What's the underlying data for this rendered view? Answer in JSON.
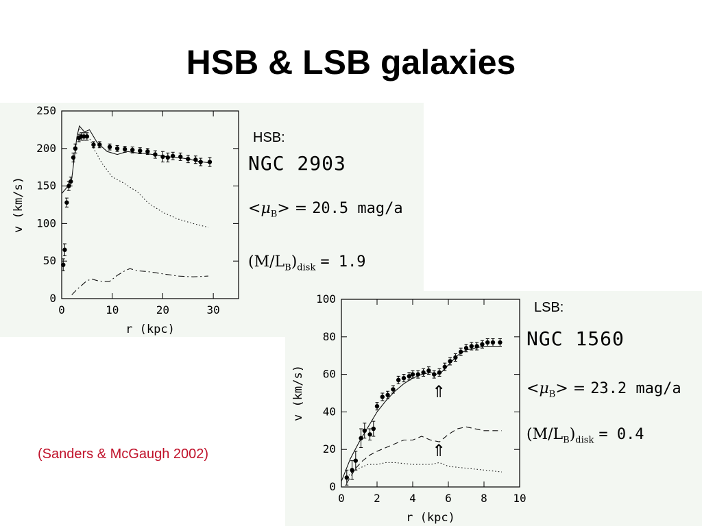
{
  "slide": {
    "title": "HSB & LSB galaxies",
    "citation": "(Sanders & McGaugh 2002)"
  },
  "panels": {
    "hsb": {
      "tag": "HSB:",
      "galaxy": "NGC 2903",
      "mu_lhs": "<μB> =",
      "mu_val": "20.5 mag/a",
      "ml_lhs": "(M/LB)disk",
      "ml_val": "= 1.9"
    },
    "lsb": {
      "tag": "LSB:",
      "galaxy": "NGC 1560",
      "mu_lhs": "<μB> =",
      "mu_val": "23.2 mag/a",
      "ml_lhs": "(M/LB)disk",
      "ml_val": "= 0.4",
      "arrow_glyph": "⇑"
    }
  },
  "chart_data": [
    {
      "type": "line",
      "xlabel": "r (kpc)",
      "ylabel": "v (km/s)",
      "xlim": [
        0,
        35
      ],
      "ylim": [
        0,
        250
      ],
      "xticks": [
        0,
        10,
        20,
        30
      ],
      "yticks": [
        0,
        50,
        100,
        150,
        200,
        250
      ],
      "observed": {
        "x": [
          0.3,
          0.6,
          1.0,
          1.4,
          1.8,
          2.3,
          2.7,
          3.4,
          3.9,
          4.4,
          5.0,
          6.3,
          7.5,
          9.5,
          11.0,
          12.5,
          14.0,
          15.5,
          17.0,
          18.5,
          20.0,
          21.0,
          22.0,
          23.5,
          25.0,
          26.5,
          27.5,
          29.3
        ],
        "v": [
          45,
          65,
          128,
          150,
          156,
          188,
          200,
          214,
          216,
          216,
          216,
          205,
          205,
          202,
          200,
          199,
          198,
          197,
          196,
          192,
          189,
          188,
          190,
          189,
          186,
          185,
          182,
          182
        ],
        "err": [
          8,
          8,
          6,
          6,
          6,
          6,
          6,
          5,
          5,
          5,
          5,
          4,
          4,
          4,
          4,
          4,
          4,
          4,
          4,
          5,
          7,
          6,
          5,
          5,
          5,
          5,
          5,
          6
        ]
      },
      "series": [
        {
          "style": "solid",
          "x": [
            0,
            1,
            2,
            3,
            3.5,
            4.5,
            5.5,
            7,
            9,
            11,
            13,
            15,
            17,
            19,
            21,
            23,
            25,
            27,
            29
          ],
          "y": [
            140,
            148,
            160,
            215,
            230,
            222,
            225,
            208,
            196,
            192,
            196,
            194,
            193,
            191,
            189,
            188,
            186,
            183,
            181
          ]
        },
        {
          "style": "dotted",
          "x": [
            3.5,
            4.5,
            5.5,
            6.5,
            8,
            10,
            12,
            15,
            17,
            20,
            23,
            26,
            29
          ],
          "y": [
            226,
            224,
            214,
            198,
            180,
            162,
            155,
            142,
            128,
            115,
            106,
            100,
            95
          ]
        },
        {
          "style": "dashdot",
          "x": [
            2,
            3,
            4,
            5,
            6,
            7,
            8,
            9.5,
            11,
            12.5,
            13.5,
            15,
            17,
            20,
            23,
            26,
            29
          ],
          "y": [
            5,
            12,
            18,
            24,
            26,
            24,
            23,
            23,
            31,
            37,
            40,
            37,
            36,
            33,
            30,
            29,
            30
          ]
        }
      ]
    },
    {
      "type": "line",
      "xlabel": "r (kpc)",
      "ylabel": "v (km/s)",
      "xlim": [
        0,
        10
      ],
      "ylim": [
        0,
        100
      ],
      "xticks": [
        0,
        2,
        4,
        6,
        8,
        10
      ],
      "yticks": [
        0,
        20,
        40,
        60,
        80,
        100
      ],
      "observed": {
        "x": [
          0.3,
          0.6,
          0.8,
          1.1,
          1.3,
          1.6,
          1.8,
          2.0,
          2.3,
          2.6,
          2.9,
          3.2,
          3.5,
          3.8,
          4.0,
          4.3,
          4.6,
          4.9,
          5.2,
          5.5,
          5.8,
          6.1,
          6.4,
          6.7,
          7.0,
          7.3,
          7.6,
          7.9,
          8.2,
          8.5,
          8.9
        ],
        "v": [
          5,
          9,
          14,
          26,
          30,
          28,
          31,
          43,
          48,
          49,
          52,
          57,
          58,
          59,
          60,
          60,
          61,
          62,
          60,
          61,
          64,
          67,
          69,
          72,
          74,
          75,
          75,
          76,
          77,
          77,
          77
        ],
        "err": [
          4,
          5,
          5,
          5,
          4,
          3,
          4,
          2,
          2,
          2,
          2,
          2,
          2,
          2,
          2,
          2,
          2,
          2,
          2,
          2,
          2,
          2,
          2,
          2,
          2,
          2,
          2,
          2,
          2,
          2,
          2
        ]
      },
      "series": [
        {
          "style": "solid",
          "x": [
            0,
            0.5,
            1.0,
            1.5,
            2.0,
            2.5,
            3.0,
            3.5,
            4.0,
            4.5,
            5.0,
            5.3,
            5.6,
            6.0,
            6.5,
            7.0,
            7.5,
            8.0,
            8.5,
            9.0
          ],
          "y": [
            3,
            15,
            24,
            32,
            40,
            46,
            51,
            55,
            58,
            60,
            61,
            60,
            61,
            65,
            70,
            73,
            74,
            75,
            75,
            75
          ]
        },
        {
          "style": "dashed",
          "x": [
            0.3,
            0.8,
            1.2,
            1.6,
            2.0,
            2.5,
            3.0,
            3.5,
            4.0,
            4.5,
            5.0,
            5.5,
            6.0,
            6.5,
            7.0,
            7.5,
            8.0,
            8.5,
            9.0
          ],
          "y": [
            2,
            10,
            14,
            17,
            19,
            21,
            23,
            25,
            25,
            27,
            25,
            24,
            28,
            31,
            32,
            31,
            30,
            30,
            30
          ]
        },
        {
          "style": "dotted",
          "x": [
            0.3,
            0.7,
            1.0,
            1.5,
            2.0,
            2.5,
            3.0,
            4.0,
            5.0,
            5.5,
            6.0,
            7.0,
            8.0,
            9.0
          ],
          "y": [
            5,
            9,
            10,
            12,
            12,
            13,
            13,
            12,
            12,
            13,
            11,
            10,
            9,
            8
          ]
        }
      ]
    }
  ]
}
